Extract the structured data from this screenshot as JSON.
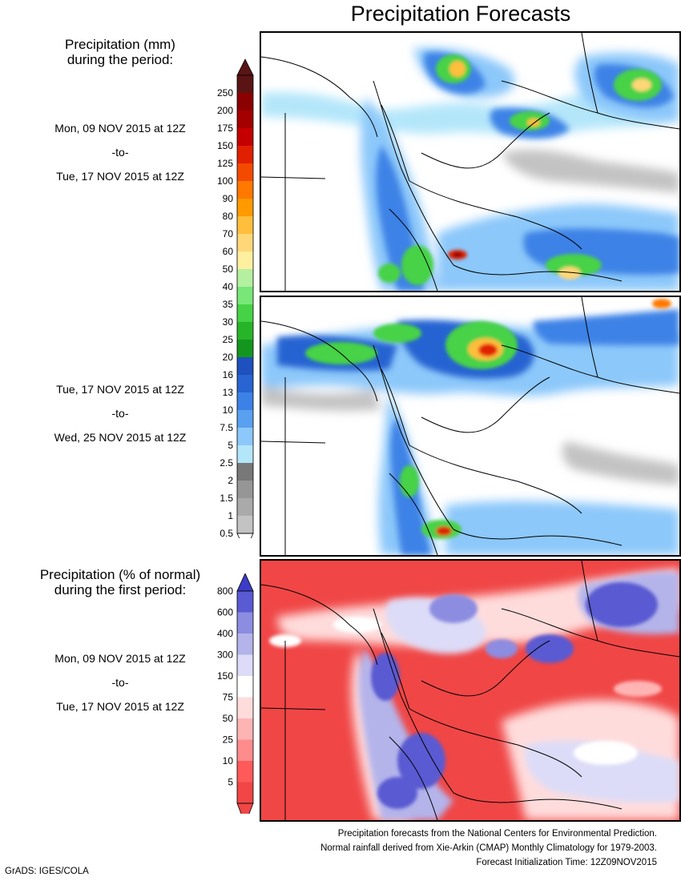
{
  "title": "Precipitation Forecasts",
  "section1": {
    "heading_line1": "Precipitation (mm)",
    "heading_line2": "during the period:",
    "period1": {
      "start": "Mon, 09 NOV 2015 at 12Z",
      "sep": "-to-",
      "end": "Tue, 17 NOV 2015 at 12Z"
    },
    "period2": {
      "start": "Tue, 17 NOV 2015 at 12Z",
      "sep": "-to-",
      "end": "Wed, 25 NOV 2015 at 12Z"
    }
  },
  "precip_legend": {
    "labels": [
      "250",
      "200",
      "175",
      "150",
      "125",
      "100",
      "90",
      "80",
      "70",
      "60",
      "50",
      "40",
      "35",
      "30",
      "25",
      "20",
      "16",
      "13",
      "10",
      "7.5",
      "5",
      "2.5",
      "2",
      "1.5",
      "1",
      "0.5"
    ],
    "colors": [
      "#5a1414",
      "#8b0000",
      "#a40000",
      "#c40000",
      "#e02000",
      "#f44a00",
      "#ff7800",
      "#ff9a00",
      "#ffbe3c",
      "#ffd778",
      "#fff0a0",
      "#b4f0a0",
      "#78e678",
      "#46d246",
      "#28b428",
      "#14961e",
      "#1e50be",
      "#2864d2",
      "#3c82e6",
      "#5aa0f0",
      "#8cc8fa",
      "#b4e6fa",
      "#787878",
      "#969696",
      "#aaaaaa",
      "#c3c3c3"
    ]
  },
  "section2": {
    "heading_line1": "Precipitation (% of normal)",
    "heading_line2": "during the first period:",
    "period": {
      "start": "Mon, 09 NOV 2015 at 12Z",
      "sep": "-to-",
      "end": "Tue, 17 NOV 2015 at 12Z"
    }
  },
  "pct_legend": {
    "labels": [
      "800",
      "600",
      "400",
      "300",
      "150",
      "75",
      "50",
      "25",
      "10",
      "5"
    ],
    "colors": [
      "#3c3cc8",
      "#5a5ad2",
      "#8c8ce1",
      "#b4b4eb",
      "#dcdcf8",
      "#ffffff",
      "#ffdcdc",
      "#ffb4b4",
      "#ff8c8c",
      "#ff5a5a",
      "#f04646"
    ]
  },
  "footer": {
    "line1": "Precipitation forecasts from the National Centers for Environmental Prediction.",
    "line2": "Normal rainfall derived from Xie-Arkin (CMAP) Monthly Climatology for 1979-2003.",
    "line3": "Forecast Initialization Time: 12Z09NOV2015"
  },
  "credit": "GrADS: IGES/COLA"
}
